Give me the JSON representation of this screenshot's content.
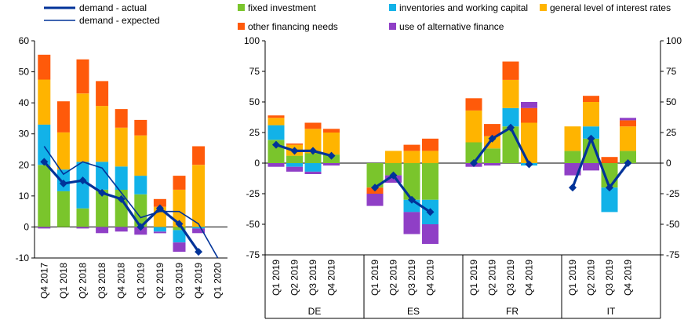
{
  "legend": {
    "line_actual": "demand - actual",
    "line_expected": "demand - expected",
    "fixed": "fixed investment",
    "inventories": "inventories and working capital",
    "interest": "general level of interest rates",
    "other": "other financing needs",
    "alternative": "use of alternative finance"
  },
  "colors": {
    "fixed": "#7ac52c",
    "inventories": "#12b2e8",
    "interest": "#ffb400",
    "other": "#ff5a0a",
    "alternative": "#8f3fc6",
    "line": "#003399"
  },
  "chart_data": [
    {
      "type": "bar",
      "stacked": true,
      "ylim": [
        -10,
        60
      ],
      "yticks": [
        -10,
        0,
        10,
        20,
        30,
        40,
        50,
        60
      ],
      "categories": [
        "Q4 2017",
        "Q1 2018",
        "Q2 2018",
        "Q3 2018",
        "Q4 2018",
        "Q1 2019",
        "Q2 2019",
        "Q3 2019",
        "Q4 2019",
        "Q1 2020"
      ],
      "series": [
        {
          "name": "fixed investment",
          "key": "fixed",
          "values": [
            20,
            11.5,
            6,
            12,
            12,
            10.5,
            0,
            -1,
            0,
            null
          ]
        },
        {
          "name": "inventories and working capital",
          "key": "inventories",
          "values": [
            13,
            7,
            15,
            9,
            7.5,
            6,
            -1.5,
            -4,
            -0.5,
            null
          ]
        },
        {
          "name": "general level of interest rates",
          "key": "interest",
          "values": [
            14.5,
            12,
            22,
            18,
            12.5,
            13,
            6.5,
            12,
            20,
            null
          ]
        },
        {
          "name": "other financing needs",
          "key": "other",
          "values": [
            8,
            10,
            11,
            8,
            6,
            5,
            2.5,
            4.5,
            6,
            null
          ]
        },
        {
          "name": "use of alternative finance",
          "key": "alternative",
          "values": [
            -0.5,
            0,
            -0.5,
            -2,
            -1.5,
            -2.5,
            -0.5,
            -3,
            -1.5,
            null
          ]
        }
      ],
      "lines": [
        {
          "name": "demand - actual",
          "key": "actual",
          "values": [
            21,
            14,
            15,
            11,
            9,
            0,
            6,
            1,
            -8,
            null
          ]
        },
        {
          "name": "demand - expected",
          "key": "expected",
          "values": [
            26,
            17,
            21,
            19,
            11,
            3,
            5,
            5,
            1,
            -10
          ]
        }
      ]
    },
    {
      "type": "bar",
      "stacked": true,
      "ylim": [
        -75,
        100
      ],
      "yticks": [
        -75,
        -50,
        -25,
        0,
        25,
        50,
        75,
        100
      ],
      "groups": [
        "DE",
        "ES",
        "FR",
        "IT"
      ],
      "quarters": [
        "Q1 2019",
        "Q2 2019",
        "Q3 2019",
        "Q4 2019"
      ],
      "bars": [
        {
          "group": 0,
          "fixed": 19,
          "inventories": 12,
          "interest": 6,
          "other": 2,
          "alternative": -3
        },
        {
          "group": 0,
          "fixed": 6,
          "inventories": -3,
          "interest": 9,
          "other": 1,
          "alternative": -4
        },
        {
          "group": 0,
          "fixed": 8,
          "inventories": -7,
          "interest": 20,
          "other": 5,
          "alternative": -2
        },
        {
          "group": 0,
          "fixed": 7,
          "inventories": 0,
          "interest": 18,
          "other": 3,
          "alternative": -2
        },
        {
          "group": 1,
          "fixed": -20,
          "inventories": 0,
          "interest": 0,
          "other": -5,
          "alternative": -10
        },
        {
          "group": 1,
          "fixed": -10,
          "inventories": 0,
          "interest": 10,
          "other": 0,
          "alternative": -6
        },
        {
          "group": 1,
          "fixed": -30,
          "inventories": -10,
          "interest": 10,
          "other": 5,
          "alternative": -18
        },
        {
          "group": 1,
          "fixed": -30,
          "inventories": -20,
          "interest": 10,
          "other": 10,
          "alternative": -16
        },
        {
          "group": 2,
          "fixed": 17,
          "inventories": 0,
          "interest": 26,
          "other": 10,
          "alternative": -3
        },
        {
          "group": 2,
          "fixed": 12,
          "inventories": 0,
          "interest": 10,
          "other": 10,
          "alternative": -2
        },
        {
          "group": 2,
          "fixed": 30,
          "inventories": 15,
          "interest": 23,
          "other": 15,
          "alternative": 0
        },
        {
          "group": 2,
          "fixed": 0,
          "inventories": -2,
          "interest": 33,
          "other": 12,
          "alternative": 5
        },
        {
          "group": 3,
          "fixed": 10,
          "inventories": 0,
          "interest": 20,
          "other": 0,
          "alternative": -10
        },
        {
          "group": 3,
          "fixed": 20,
          "inventories": 10,
          "interest": 20,
          "other": 5,
          "alternative": -6
        },
        {
          "group": 3,
          "fixed": -20,
          "inventories": -20,
          "interest": 0,
          "other": 5,
          "alternative": 0
        },
        {
          "group": 3,
          "fixed": 10,
          "inventories": 0,
          "interest": 20,
          "other": 5,
          "alternative": 2
        }
      ],
      "demand_actual": [
        15,
        10,
        10,
        6,
        -20,
        -10,
        -30,
        -40,
        0,
        20,
        29,
        -1,
        -20,
        20,
        -20,
        0
      ]
    }
  ]
}
